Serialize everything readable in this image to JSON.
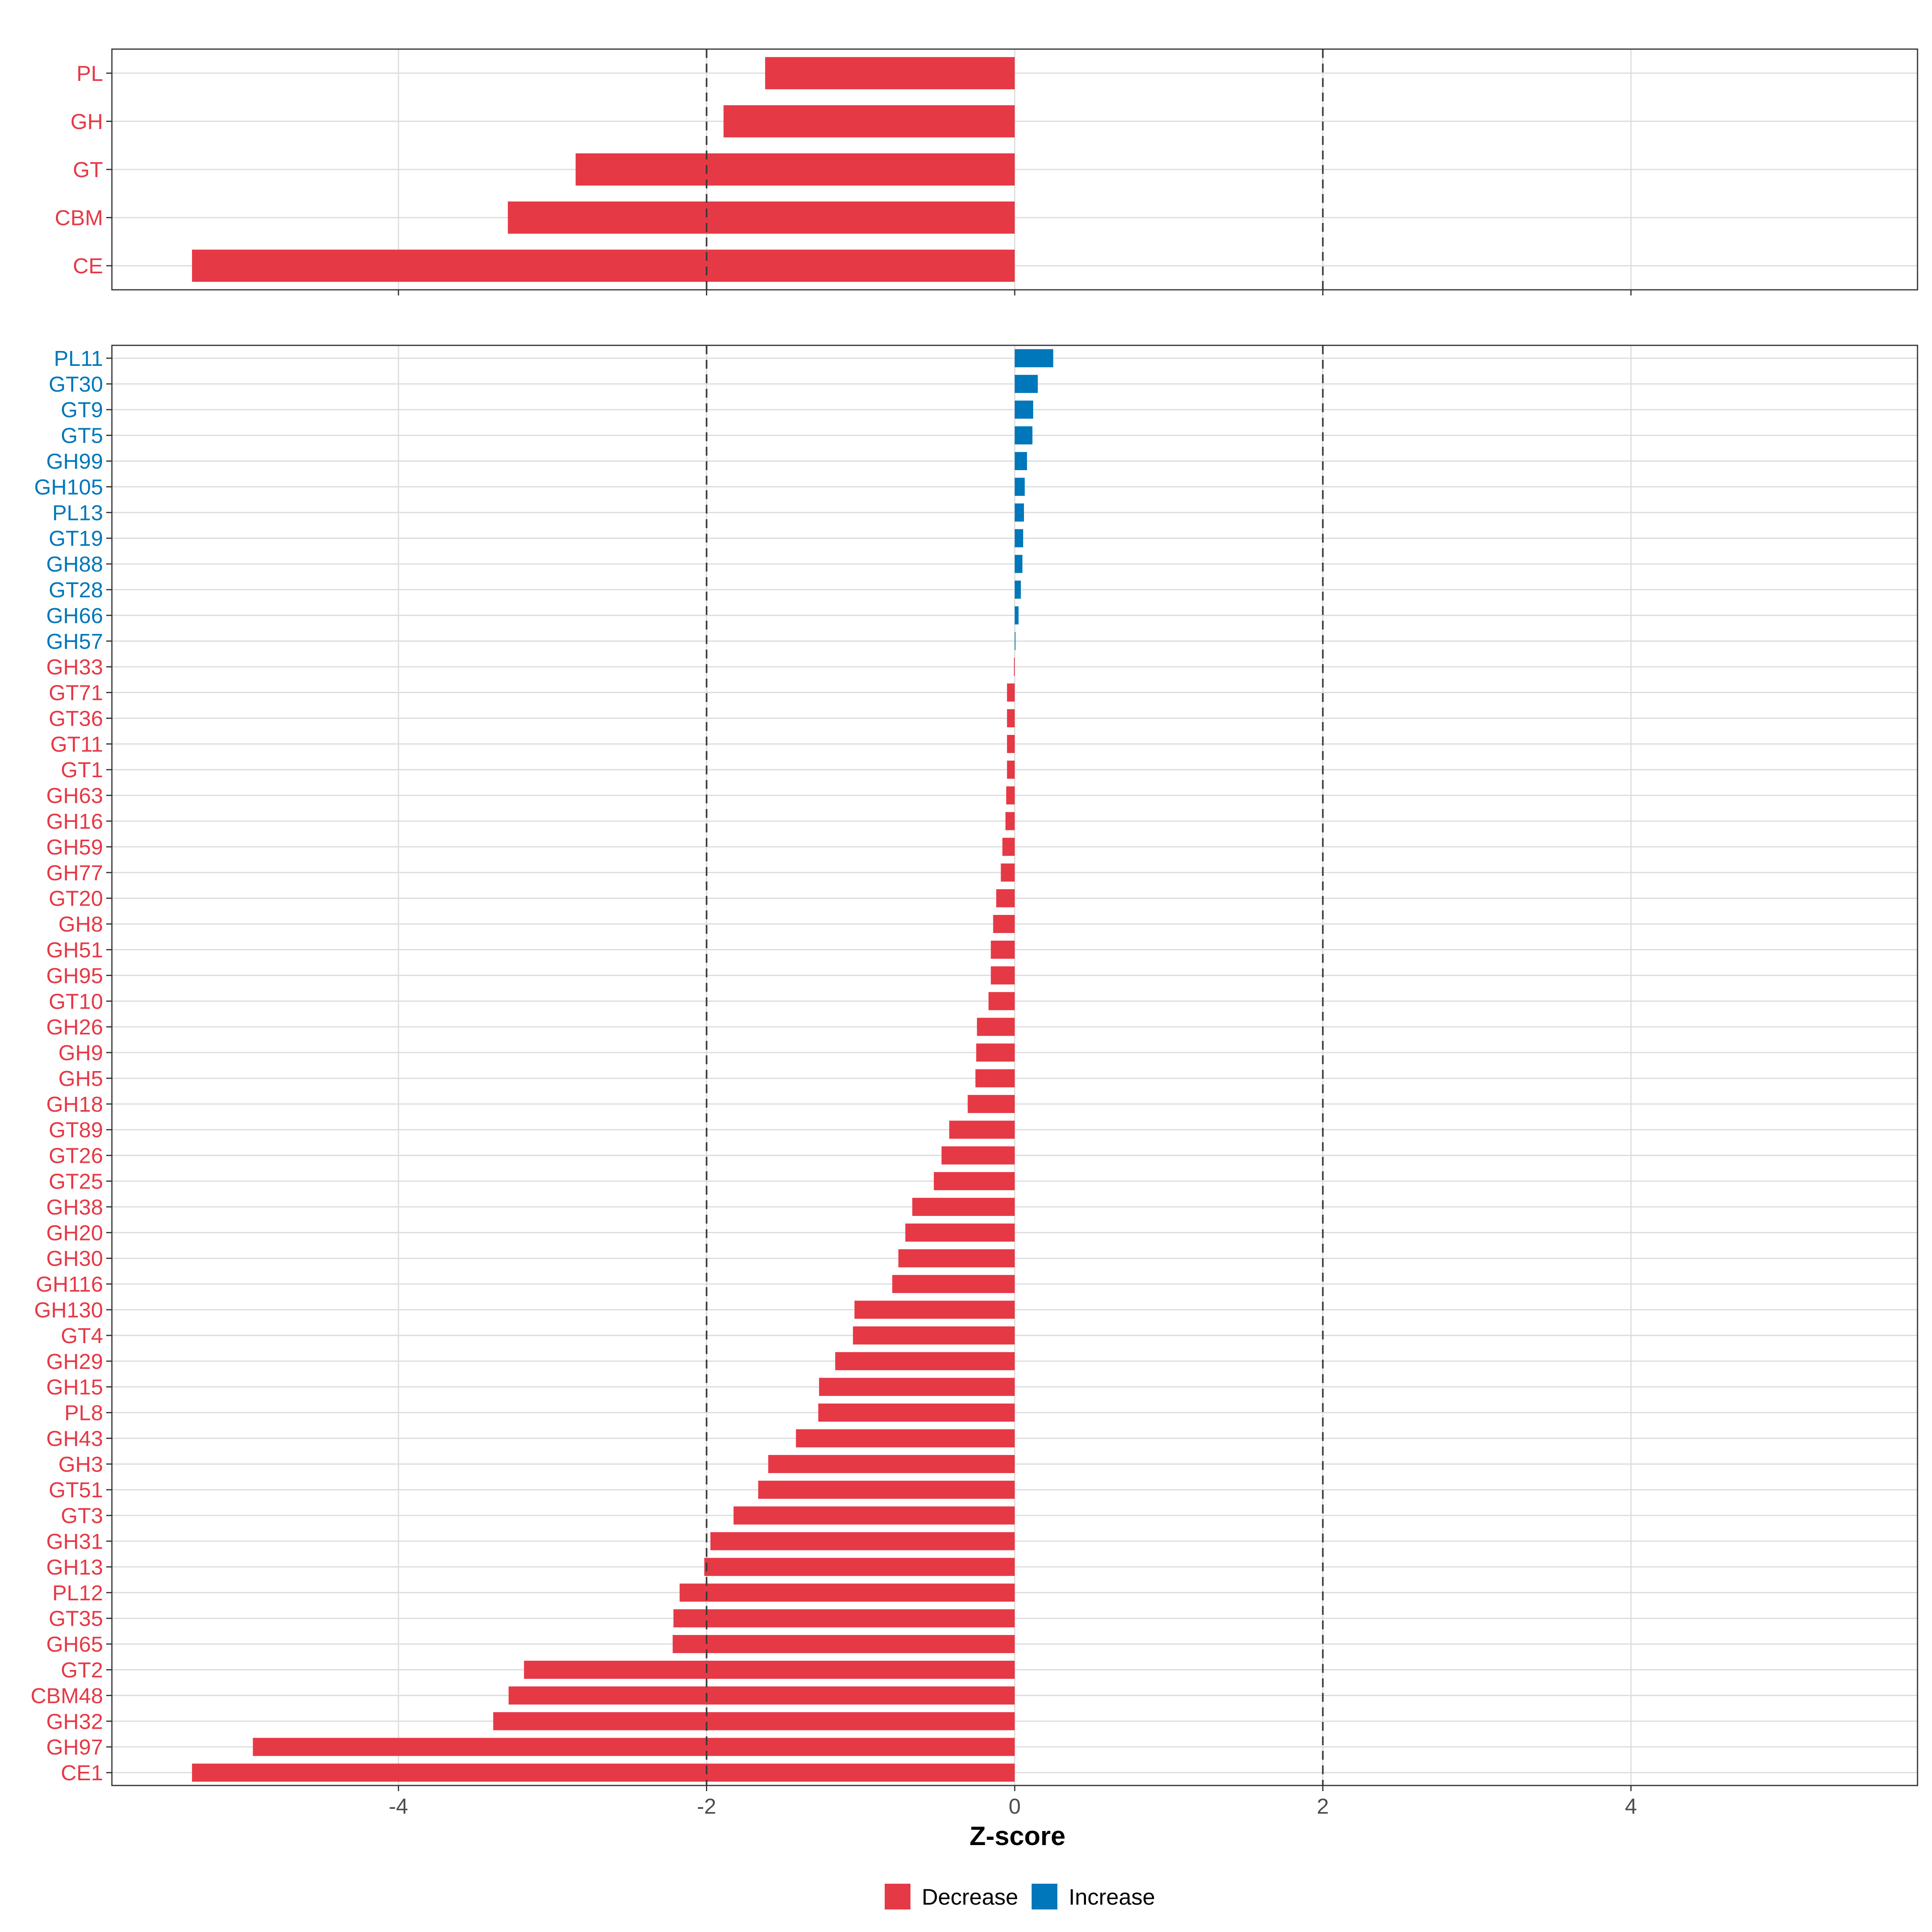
{
  "colors": {
    "decrease": "#E63946",
    "increase": "#0077BB"
  },
  "chart_data": [
    {
      "type": "bar",
      "orientation": "horizontal",
      "panel": "top",
      "categories": [
        "PL",
        "GH",
        "GT",
        "CBM",
        "CE"
      ],
      "values": [
        -1.62,
        -1.89,
        -2.85,
        -3.29,
        -5.34
      ],
      "xlim": [
        -5.86,
        5.86
      ],
      "ticks": [
        -4,
        -2,
        0,
        2,
        4
      ],
      "reference_lines": [
        -2,
        2
      ]
    },
    {
      "type": "bar",
      "orientation": "horizontal",
      "panel": "bottom",
      "categories": [
        "PL11",
        "GT30",
        "GT9",
        "GT5",
        "GH99",
        "GH105",
        "PL13",
        "GT19",
        "GH88",
        "GT28",
        "GH66",
        "GH57",
        "GH33",
        "GT71",
        "GT36",
        "GT11",
        "GT1",
        "GH63",
        "GH16",
        "GH59",
        "GH77",
        "GT20",
        "GH8",
        "GH51",
        "GH95",
        "GT10",
        "GH26",
        "GH9",
        "GH5",
        "GH18",
        "GT89",
        "GT26",
        "GT25",
        "GH38",
        "GH20",
        "GH30",
        "GH116",
        "GH130",
        "GT4",
        "GH29",
        "GH15",
        "PL8",
        "GH43",
        "GH3",
        "GT51",
        "GT3",
        "GH31",
        "GH13",
        "PL12",
        "GT35",
        "GH65",
        "GT2",
        "CBM48",
        "GH32",
        "GH97",
        "CE1"
      ],
      "values": [
        0.25,
        0.15,
        0.12,
        0.115,
        0.08,
        0.065,
        0.06,
        0.055,
        0.05,
        0.04,
        0.025,
        0.005,
        -0.005,
        -0.05,
        -0.05,
        -0.05,
        -0.05,
        -0.055,
        -0.06,
        -0.08,
        -0.09,
        -0.12,
        -0.14,
        -0.155,
        -0.155,
        -0.17,
        -0.245,
        -0.25,
        -0.255,
        -0.305,
        -0.425,
        -0.475,
        -0.525,
        -0.665,
        -0.71,
        -0.755,
        -0.795,
        -1.04,
        -1.05,
        -1.165,
        -1.27,
        -1.275,
        -1.42,
        -1.6,
        -1.665,
        -1.825,
        -1.975,
        -2.015,
        -2.175,
        -2.215,
        -2.22,
        -3.185,
        -3.285,
        -3.385,
        -4.945,
        -5.34
      ],
      "xlim": [
        -5.86,
        5.86
      ],
      "ticks": [
        -4,
        -2,
        0,
        2,
        4
      ],
      "tick_labels": [
        "-4",
        "-2",
        "0",
        "2",
        "4"
      ],
      "reference_lines": [
        -2,
        2
      ],
      "xlabel": "Z-score"
    }
  ],
  "legend": {
    "items": [
      {
        "label": "Decrease",
        "color": "#E63946"
      },
      {
        "label": "Increase",
        "color": "#0077BB"
      }
    ]
  }
}
